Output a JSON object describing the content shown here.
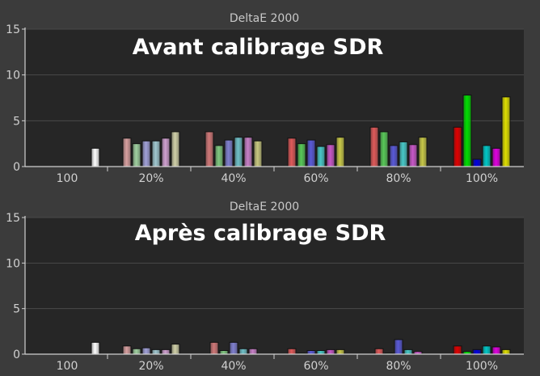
{
  "chart_data": [
    {
      "type": "bar",
      "title": "DeltaE 2000",
      "overlay_title": "Avant calibrage SDR",
      "ylim": [
        0,
        15
      ],
      "yticks": [
        0,
        5,
        10,
        15
      ],
      "categories": [
        "100",
        "20%",
        "40%",
        "60%",
        "80%",
        "100%"
      ],
      "groups": [
        {
          "category": "100",
          "values": [
            2.0
          ]
        },
        {
          "category": "20%",
          "values": [
            3.1,
            2.5,
            2.8,
            2.8,
            3.1,
            3.8
          ]
        },
        {
          "category": "40%",
          "values": [
            3.8,
            2.3,
            2.9,
            3.2,
            3.2,
            2.8
          ]
        },
        {
          "category": "60%",
          "values": [
            3.1,
            2.5,
            2.9,
            2.2,
            2.4,
            3.2
          ]
        },
        {
          "category": "80%",
          "values": [
            4.3,
            3.8,
            2.3,
            2.7,
            2.4,
            3.2
          ]
        },
        {
          "category": "100%",
          "values": [
            4.3,
            7.8,
            0.8,
            2.3,
            2.0,
            7.6
          ]
        }
      ],
      "grid": true
    },
    {
      "type": "bar",
      "title": "DeltaE 2000",
      "overlay_title": "Après calibrage SDR",
      "ylim": [
        0,
        15
      ],
      "yticks": [
        0,
        5,
        10,
        15
      ],
      "categories": [
        "100",
        "20%",
        "40%",
        "60%",
        "80%",
        "100%"
      ],
      "groups": [
        {
          "category": "100",
          "values": [
            1.3
          ]
        },
        {
          "category": "20%",
          "values": [
            0.9,
            0.6,
            0.7,
            0.5,
            0.5,
            1.1
          ]
        },
        {
          "category": "40%",
          "values": [
            1.3,
            0.4,
            1.3,
            0.6,
            0.6
          ]
        },
        {
          "category": "60%",
          "values": [
            0.6,
            0.1,
            0.4,
            0.4,
            0.5,
            0.5
          ]
        },
        {
          "category": "80%",
          "values": [
            0.6,
            0.1,
            1.6,
            0.5,
            0.3
          ]
        },
        {
          "category": "100%",
          "values": [
            0.9,
            0.3,
            0.5,
            0.9,
            0.8,
            0.5
          ]
        }
      ],
      "grid": true
    }
  ],
  "palettes": {
    "gray": [
      "#ffffff"
    ],
    "six": [
      "#e05a5a",
      "#58c858",
      "#5a5ad8",
      "#48c8c8",
      "#c858c8",
      "#c8c848"
    ],
    "twenty": [
      "#d8a0a0",
      "#a0d0a0",
      "#a0a0d8",
      "#a0c8d0",
      "#d0a0d0",
      "#d0d0a8"
    ],
    "forty": [
      "#d07878",
      "#80c880",
      "#8080d0",
      "#70c0c8",
      "#c880c8",
      "#c8c880"
    ],
    "vivid": [
      "#e00000",
      "#00e000",
      "#0000e0",
      "#00c8c8",
      "#e000e0",
      "#e0e000"
    ]
  },
  "colors": {
    "page_bg": "#3b3b3b",
    "plot_bg": "#262626",
    "grid": "#4a4a4a",
    "axis": "#d0d0d0"
  }
}
